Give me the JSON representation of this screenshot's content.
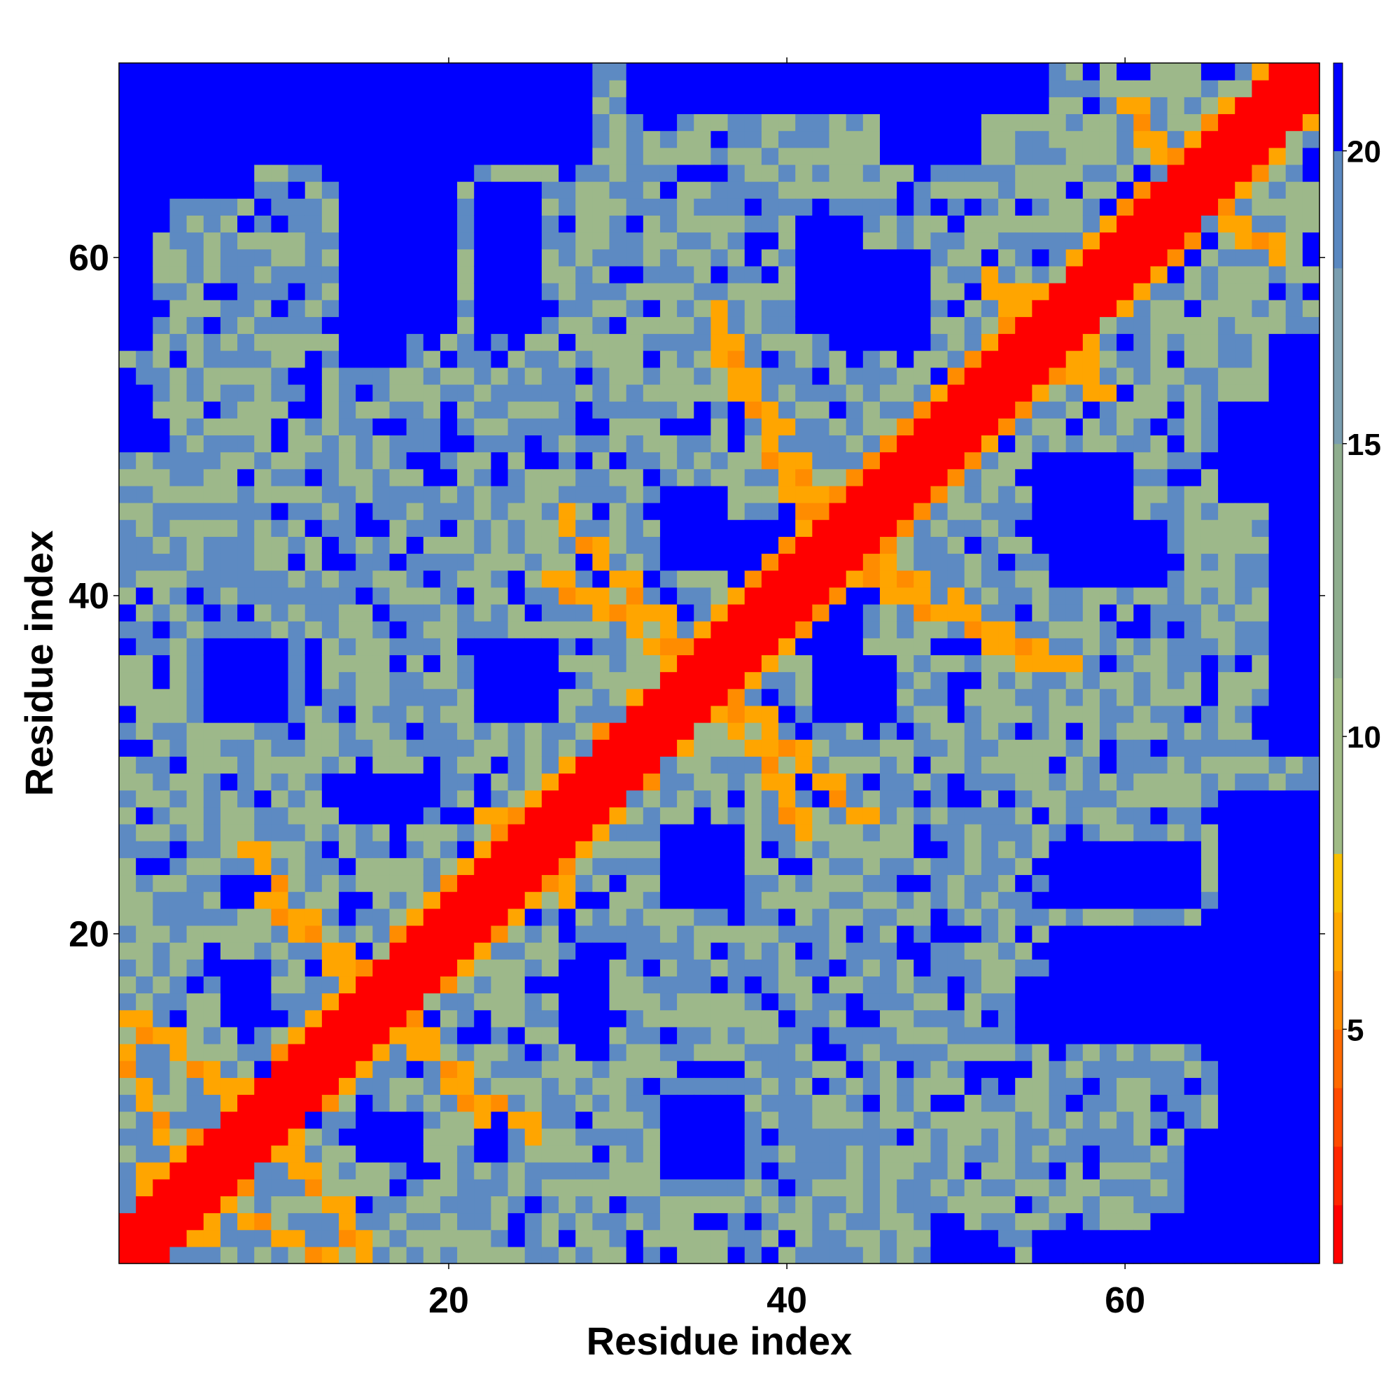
{
  "chart_data": {
    "type": "heatmap",
    "title": "",
    "xlabel": "Residue index",
    "ylabel": "Residue index",
    "n_residues": 71,
    "xlim": [
      0.5,
      71.5
    ],
    "ylim": [
      0.5,
      71.5
    ],
    "x_ticks": [
      20,
      40,
      60
    ],
    "y_ticks": [
      20,
      40,
      60
    ],
    "colorbar": {
      "ticks": [
        5,
        10,
        15,
        20
      ],
      "range": [
        1,
        21.5
      ],
      "scale": [
        {
          "min": 1,
          "max": 2,
          "color": "#ff0000"
        },
        {
          "min": 2,
          "max": 3,
          "color": "#ff2600"
        },
        {
          "min": 3,
          "max": 4,
          "color": "#ff4a00"
        },
        {
          "min": 4,
          "max": 5,
          "color": "#ff6a00"
        },
        {
          "min": 5,
          "max": 6,
          "color": "#ff8a00"
        },
        {
          "min": 6,
          "max": 7,
          "color": "#ffa800"
        },
        {
          "min": 7,
          "max": 8,
          "color": "#f7c000"
        },
        {
          "min": 8,
          "max": 11,
          "color": "#a0bb86"
        },
        {
          "min": 11,
          "max": 15,
          "color": "#8fae8f"
        },
        {
          "min": 15,
          "max": 18,
          "color": "#7a9eb0"
        },
        {
          "min": 18,
          "max": 20,
          "color": "#5a88c0"
        },
        {
          "min": 20,
          "max": 21.5,
          "color": "#0000ff"
        }
      ]
    },
    "value_colors": {
      "contact": "#ff0000",
      "near": "#ff8c00",
      "close": "#ffa500",
      "mid": "#9db88a",
      "far": "#5d8ac2",
      "distant": "#0000ff"
    },
    "diagonal_band_width": 2,
    "contact_segments": [
      {
        "from": [
          2,
          6
        ],
        "to": [
          12,
          1
        ],
        "level": "close"
      },
      {
        "from": [
          1,
          15
        ],
        "to": [
          9,
          9
        ],
        "level": "close"
      },
      {
        "from": [
          9,
          22
        ],
        "to": [
          15,
          17
        ],
        "level": "close"
      },
      {
        "from": [
          16,
          15
        ],
        "to": [
          25,
          8
        ],
        "level": "close"
      },
      {
        "from": [
          22,
          25
        ],
        "to": [
          27,
          22
        ],
        "level": "close"
      },
      {
        "from": [
          26,
          41
        ],
        "to": [
          34,
          36
        ],
        "level": "close"
      },
      {
        "from": [
          36,
          35
        ],
        "to": [
          44,
          27
        ],
        "level": "close"
      },
      {
        "from": [
          36,
          54
        ],
        "to": [
          42,
          45
        ],
        "level": "close"
      },
      {
        "from": [
          44,
          41
        ],
        "to": [
          56,
          36
        ],
        "level": "close"
      },
      {
        "from": [
          53,
          58
        ],
        "to": [
          58,
          52
        ],
        "level": "close"
      },
      {
        "from": [
          60,
          69
        ],
        "to": [
          62,
          66
        ],
        "level": "close"
      },
      {
        "from": [
          62,
          61
        ],
        "to": [
          68,
          67
        ],
        "level": "close"
      }
    ],
    "distant_blocks": [
      {
        "x": [
          1,
          2
        ],
        "y": [
          55,
          71
        ]
      },
      {
        "x": [
          1,
          10
        ],
        "y": [
          69,
          71
        ]
      },
      {
        "x": [
          11,
          15
        ],
        "y": [
          70,
          71
        ]
      },
      {
        "x": [
          16,
          20
        ],
        "y": [
          56,
          66
        ]
      },
      {
        "x": [
          22,
          28
        ],
        "y": [
          66,
          71
        ]
      },
      {
        "x": [
          31,
          50
        ],
        "y": [
          69,
          71
        ]
      },
      {
        "x": [
          43,
          48
        ],
        "y": [
          55,
          60
        ]
      },
      {
        "x": [
          49,
          55
        ],
        "y": [
          69,
          71
        ]
      },
      {
        "x": [
          66,
          71
        ],
        "y": [
          46,
          51
        ]
      },
      {
        "x": [
          66,
          71
        ],
        "y": [
          1,
          22
        ]
      },
      {
        "x": [
          54,
          66
        ],
        "y": [
          14,
          17
        ]
      },
      {
        "x": [
          56,
          62
        ],
        "y": [
          41,
          44
        ]
      },
      {
        "x": [
          56,
          64
        ],
        "y": [
          22,
          25
        ]
      },
      {
        "x": [
          37,
          40
        ],
        "y": [
          39,
          44
        ]
      },
      {
        "x": [
          33,
          37
        ],
        "y": [
          22,
          26
        ]
      },
      {
        "x": [
          35,
          37
        ],
        "y": [
          6,
          10
        ]
      },
      {
        "x": [
          42,
          46
        ],
        "y": [
          33,
          36
        ]
      },
      {
        "x": [
          14,
          18
        ],
        "y": [
          27,
          29
        ]
      },
      {
        "x": [
          6,
          9
        ],
        "y": [
          33,
          35
        ]
      },
      {
        "x": [
          23,
          26
        ],
        "y": [
          33,
          36
        ]
      },
      {
        "x": [
          28,
          29
        ],
        "y": [
          13,
          19
        ]
      },
      {
        "x": [
          15,
          18
        ],
        "y": [
          7,
          9
        ]
      },
      {
        "x": [
          64,
          66
        ],
        "y": [
          2,
          8
        ]
      },
      {
        "x": [
          62,
          64
        ],
        "y": [
          1,
          3
        ]
      },
      {
        "x": [
          49,
          52
        ],
        "y": [
          1,
          2
        ]
      }
    ]
  }
}
